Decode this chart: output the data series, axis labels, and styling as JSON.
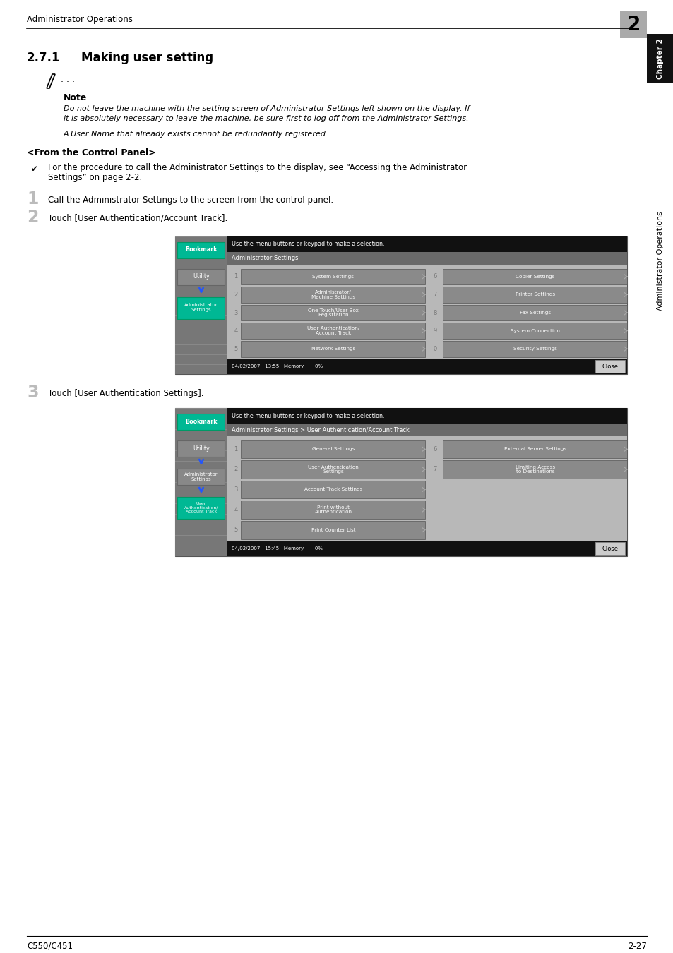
{
  "page_title": "Administrator Operations",
  "chapter_num": "2",
  "chapter_label": "Chapter 2",
  "section_title": "2.7.1",
  "section_subtitle": "Making user setting",
  "note_label": "Note",
  "note_text1": "Do not leave the machine with the setting screen of Administrator Settings left shown on the display. If",
  "note_text2": "it is absolutely necessary to leave the machine, be sure first to log off from the Administrator Settings.",
  "note_text3": "A User Name that already exists cannot be redundantly registered.",
  "from_panel_title": "<From the Control Panel>",
  "checkmark_line1": "For the procedure to call the Administrator Settings to the display, see “Accessing the Administrator",
  "checkmark_line2": "Settings” on page 2-2.",
  "step1_text": "Call the Administrator Settings to the screen from the control panel.",
  "step2_text": "Touch [User Authentication/Account Track].",
  "step3_text": "Touch [User Authentication Settings].",
  "screen1_header": "Use the menu buttons or keypad to make a selection.",
  "screen1_title": "Administrator Settings",
  "screen1_rows": [
    [
      "1",
      "System Settings",
      "6",
      "Copier Settings"
    ],
    [
      "2",
      "Administrator/\nMachine Settings",
      "7",
      "Printer Settings"
    ],
    [
      "3",
      "One-Touch/User Box\nRegistration",
      "8",
      "Fax Settings"
    ],
    [
      "4",
      "User Authentication/\nAccount Track",
      "9",
      "System Connection"
    ],
    [
      "5",
      "Network Settings",
      "0",
      "Security Settings"
    ]
  ],
  "screen1_datetime": "04/02/2007   13:55",
  "screen1_memory": "Memory       0%",
  "screen2_header": "Use the menu buttons or keypad to make a selection.",
  "screen2_title": "Administrator Settings > User Authentication/Account Track",
  "screen2_rows": [
    [
      "1",
      "General Settings",
      "6",
      "External Server Settings"
    ],
    [
      "2",
      "User Authentication\nSettings",
      "7",
      "Limiting Access\nto Destinations"
    ],
    [
      "3",
      "Account Track Settings",
      "",
      ""
    ],
    [
      "4",
      "Print without\nAuthentication",
      "",
      ""
    ],
    [
      "5",
      "Print Counter List",
      "",
      ""
    ]
  ],
  "screen2_datetime": "04/02/2007   15:45",
  "screen2_memory": "Memory       0%",
  "sidebar_chapter": "Chapter 2",
  "sidebar_ops": "Administrator Operations",
  "footer_left": "C550/C451",
  "footer_right": "2-27",
  "color_white": "#ffffff",
  "color_black": "#000000",
  "color_gray_header": "#aaaaaa",
  "color_green": "#00b894",
  "color_screen_outer": "#787878",
  "color_screen_sidebar": "#888888",
  "color_screen_header": "#111111",
  "color_screen_titlebar": "#888888",
  "color_screen_content": "#c0c0c0",
  "color_btn_dark": "#686868",
  "color_btn_light": "#a0a0a0",
  "color_sidebar_black": "#111111",
  "color_step_num": "#bbbbbb"
}
